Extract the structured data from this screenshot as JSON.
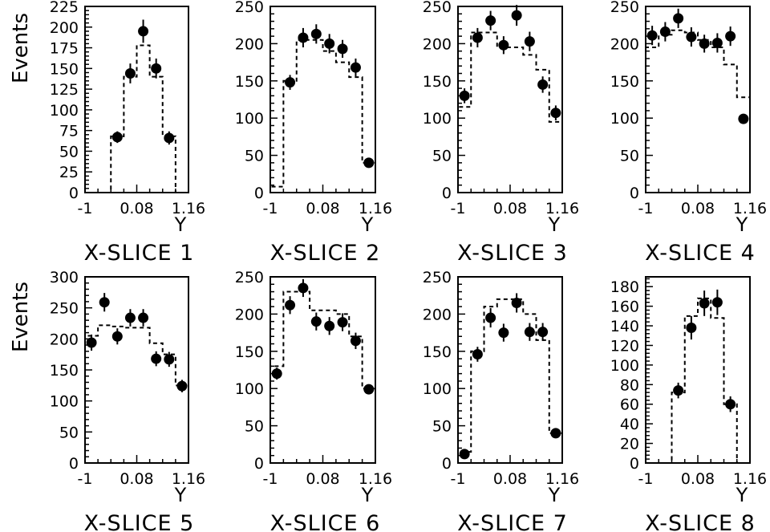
{
  "figure": {
    "y_axis_title": "Events",
    "x_axis_title": "Y"
  },
  "chart_data": [
    {
      "type": "scatter",
      "title": "X-SLICE 1",
      "xlabel": "Y",
      "ylabel": "Events",
      "xlim": [
        -1,
        1.16
      ],
      "ylim": [
        0,
        225
      ],
      "x_ticks": [
        "-1",
        "0.08",
        "1.16"
      ],
      "y_ticks": [
        0,
        25,
        50,
        75,
        100,
        125,
        150,
        175,
        200,
        225
      ],
      "x_bin_edges": [
        -1.0,
        -0.73,
        -0.46,
        -0.19,
        0.08,
        0.35,
        0.62,
        0.89,
        1.16
      ],
      "series": [
        {
          "type": "points",
          "values": [
            null,
            null,
            67,
            144,
            195,
            150,
            66,
            null
          ],
          "errors": [
            null,
            null,
            7,
            12,
            14,
            12,
            8,
            null
          ]
        },
        {
          "type": "dashed-histogram",
          "values": [
            0,
            0,
            68,
            140,
            178,
            140,
            68,
            0
          ]
        }
      ]
    },
    {
      "type": "scatter",
      "title": "X-SLICE 2",
      "xlabel": "Y",
      "ylabel": "",
      "xlim": [
        -1,
        1.16
      ],
      "ylim": [
        0,
        250
      ],
      "x_ticks": [
        "-1",
        "0.08",
        "1.16"
      ],
      "y_ticks": [
        0,
        50,
        100,
        150,
        200,
        250
      ],
      "x_bin_edges": [
        -1.0,
        -0.73,
        -0.46,
        -0.19,
        0.08,
        0.35,
        0.62,
        0.89,
        1.16
      ],
      "series": [
        {
          "type": "points",
          "values": [
            null,
            148,
            208,
            213,
            200,
            193,
            168,
            40
          ],
          "errors": [
            null,
            10,
            13,
            13,
            13,
            12,
            12,
            null
          ]
        },
        {
          "type": "dashed-histogram",
          "values": [
            8,
            150,
            205,
            205,
            190,
            175,
            155,
            40
          ]
        }
      ]
    },
    {
      "type": "scatter",
      "title": "X-SLICE 3",
      "xlabel": "Y",
      "ylabel": "",
      "xlim": [
        -1,
        1.16
      ],
      "ylim": [
        0,
        250
      ],
      "x_ticks": [
        "-1",
        "0.08",
        "1.16"
      ],
      "y_ticks": [
        0,
        50,
        100,
        150,
        200,
        250
      ],
      "x_bin_edges": [
        -1.0,
        -0.73,
        -0.46,
        -0.19,
        0.08,
        0.35,
        0.62,
        0.89,
        1.16
      ],
      "series": [
        {
          "type": "points",
          "values": [
            130,
            208,
            231,
            198,
            238,
            203,
            145,
            107
          ],
          "errors": [
            10,
            13,
            13,
            12,
            14,
            13,
            11,
            10
          ]
        },
        {
          "type": "dashed-histogram",
          "values": [
            115,
            215,
            215,
            195,
            195,
            185,
            165,
            95
          ]
        }
      ]
    },
    {
      "type": "scatter",
      "title": "X-SLICE 4",
      "xlabel": "Y",
      "ylabel": "",
      "xlim": [
        -1,
        1.16
      ],
      "ylim": [
        0,
        250
      ],
      "x_ticks": [
        "-1",
        "0.08",
        "1.16"
      ],
      "y_ticks": [
        0,
        50,
        100,
        150,
        200,
        250
      ],
      "x_bin_edges": [
        -1.0,
        -0.73,
        -0.46,
        -0.19,
        0.08,
        0.35,
        0.62,
        0.89,
        1.16
      ],
      "series": [
        {
          "type": "points",
          "values": [
            211,
            216,
            234,
            209,
            200,
            201,
            210,
            99
          ],
          "errors": [
            13,
            13,
            13,
            13,
            12,
            13,
            13,
            null
          ]
        },
        {
          "type": "dashed-histogram",
          "values": [
            195,
            212,
            218,
            215,
            205,
            195,
            172,
            128
          ]
        }
      ]
    },
    {
      "type": "scatter",
      "title": "X-SLICE 5",
      "xlabel": "Y",
      "ylabel": "Events",
      "xlim": [
        -1,
        1.16
      ],
      "ylim": [
        0,
        300
      ],
      "x_ticks": [
        "-1",
        "0.08",
        "1.16"
      ],
      "y_ticks": [
        0,
        50,
        100,
        150,
        200,
        250,
        300
      ],
      "x_bin_edges": [
        -1.0,
        -0.73,
        -0.46,
        -0.19,
        0.08,
        0.35,
        0.62,
        0.89,
        1.16
      ],
      "series": [
        {
          "type": "points",
          "values": [
            194,
            259,
            204,
            234,
            234,
            168,
            167,
            124
          ],
          "errors": [
            13,
            15,
            13,
            14,
            14,
            12,
            12,
            10
          ]
        },
        {
          "type": "dashed-histogram",
          "values": [
            205,
            222,
            220,
            218,
            218,
            193,
            175,
            125
          ]
        }
      ]
    },
    {
      "type": "scatter",
      "title": "X-SLICE 6",
      "xlabel": "Y",
      "ylabel": "",
      "xlim": [
        -1,
        1.16
      ],
      "ylim": [
        0,
        250
      ],
      "x_ticks": [
        "-1",
        "0.08",
        "1.16"
      ],
      "y_ticks": [
        0,
        50,
        100,
        150,
        200,
        250
      ],
      "x_bin_edges": [
        -1.0,
        -0.73,
        -0.46,
        -0.19,
        0.08,
        0.35,
        0.62,
        0.89,
        1.16
      ],
      "series": [
        {
          "type": "points",
          "values": [
            120,
            212,
            235,
            190,
            184,
            189,
            164,
            99
          ],
          "errors": [
            8,
            12,
            12,
            12,
            12,
            12,
            11,
            null
          ]
        },
        {
          "type": "dashed-histogram",
          "values": [
            130,
            230,
            230,
            205,
            205,
            200,
            170,
            100
          ]
        }
      ]
    },
    {
      "type": "scatter",
      "title": "X-SLICE 7",
      "xlabel": "Y",
      "ylabel": "",
      "xlim": [
        -1,
        1.16
      ],
      "ylim": [
        0,
        250
      ],
      "x_ticks": [
        "-1",
        "0.08",
        "1.16"
      ],
      "y_ticks": [
        0,
        50,
        100,
        150,
        200,
        250
      ],
      "x_bin_edges": [
        -1.0,
        -0.73,
        -0.46,
        -0.19,
        0.08,
        0.35,
        0.62,
        0.89,
        1.16
      ],
      "series": [
        {
          "type": "points",
          "values": [
            12,
            146,
            195,
            175,
            215,
            176,
            176,
            40
          ],
          "errors": [
            null,
            10,
            13,
            12,
            13,
            12,
            12,
            null
          ]
        },
        {
          "type": "dashed-histogram",
          "values": [
            15,
            150,
            210,
            220,
            220,
            200,
            165,
            40
          ]
        }
      ]
    },
    {
      "type": "scatter",
      "title": "X-SLICE 8",
      "xlabel": "Y",
      "ylabel": "",
      "xlim": [
        -1,
        1.16
      ],
      "ylim": [
        0,
        190
      ],
      "x_ticks": [
        "-1",
        "0.08",
        "1.16"
      ],
      "y_ticks": [
        0,
        20,
        40,
        60,
        80,
        100,
        120,
        140,
        160,
        180
      ],
      "x_bin_edges": [
        -1.0,
        -0.73,
        -0.46,
        -0.19,
        0.08,
        0.35,
        0.62,
        0.89,
        1.16
      ],
      "series": [
        {
          "type": "points",
          "values": [
            null,
            null,
            74,
            138,
            163,
            164,
            60,
            null
          ],
          "errors": [
            null,
            null,
            8,
            12,
            13,
            13,
            8,
            null
          ]
        },
        {
          "type": "dashed-histogram",
          "values": [
            0,
            0,
            72,
            150,
            168,
            148,
            60,
            0
          ]
        }
      ]
    }
  ]
}
